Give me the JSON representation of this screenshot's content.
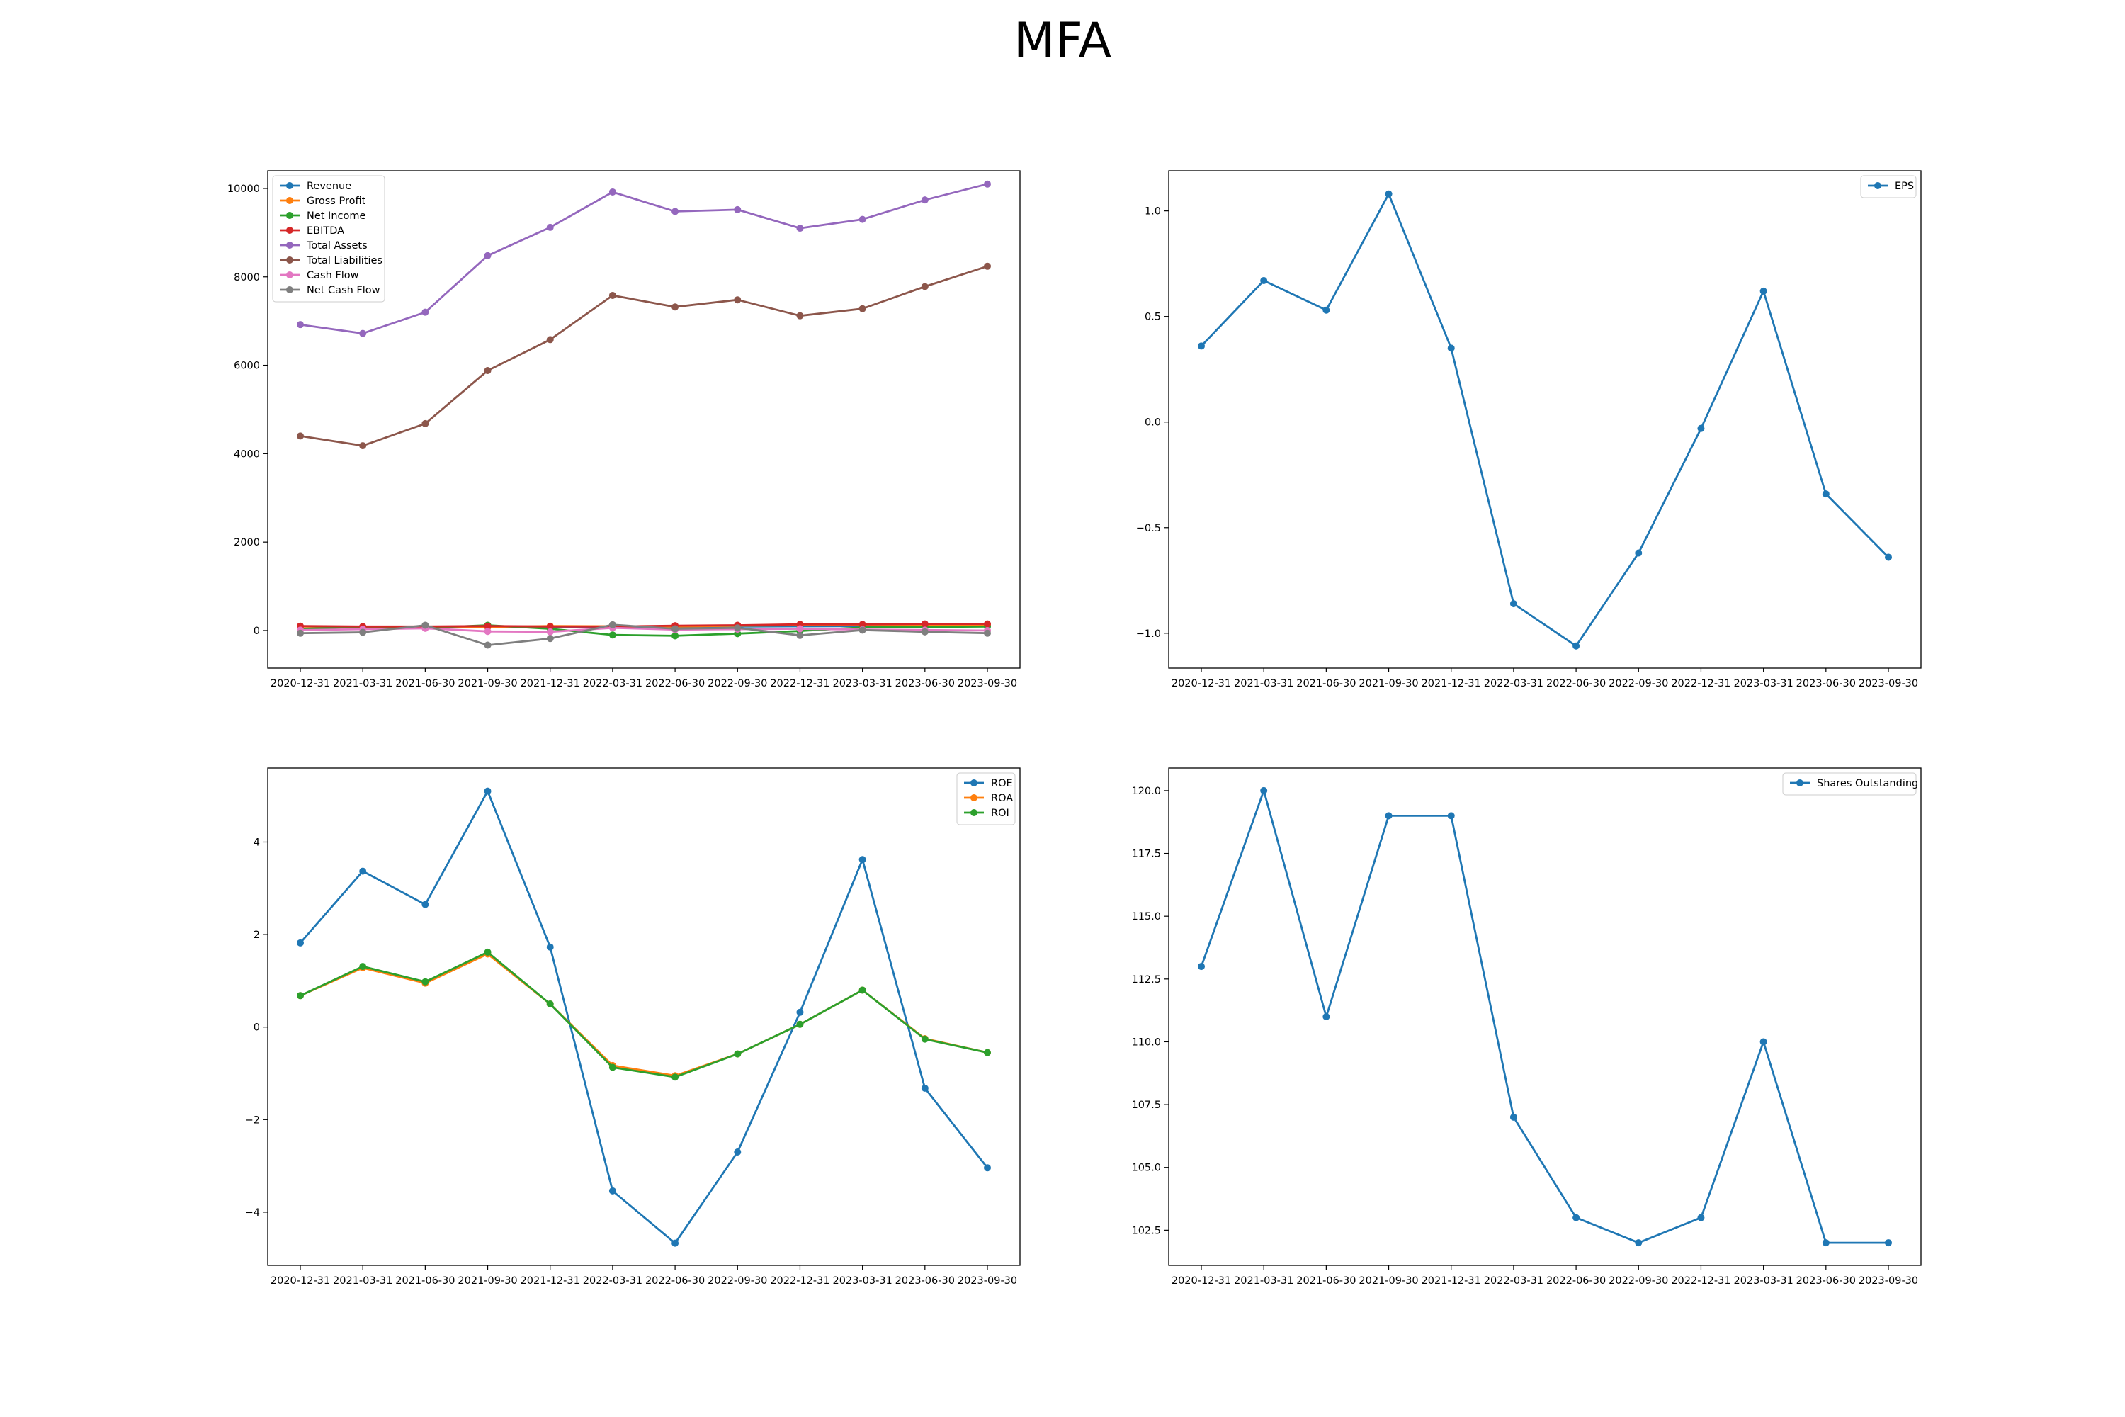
{
  "figure_title": "MFA",
  "chart_data": [
    {
      "type": "line",
      "title": "",
      "xlabel": "",
      "ylabel": "",
      "x": [
        "2020-12-31",
        "2021-03-31",
        "2021-06-30",
        "2021-09-30",
        "2021-12-31",
        "2022-03-31",
        "2022-06-30",
        "2022-09-30",
        "2022-12-31",
        "2023-03-31",
        "2023-06-30",
        "2023-09-30"
      ],
      "ylim": [
        -850,
        10400
      ],
      "yticks": [
        0,
        2000,
        4000,
        6000,
        8000,
        10000
      ],
      "legend": "upper left",
      "series": [
        {
          "name": "Revenue",
          "color": "#1f77b4",
          "values": [
            95,
            80,
            75,
            80,
            70,
            80,
            85,
            90,
            95,
            100,
            100,
            105
          ]
        },
        {
          "name": "Gross Profit",
          "color": "#ff7f0e",
          "values": [
            90,
            85,
            80,
            80,
            100,
            95,
            90,
            110,
            120,
            120,
            125,
            130
          ]
        },
        {
          "name": "Net Income",
          "color": "#2ca02c",
          "values": [
            40,
            80,
            60,
            120,
            40,
            -100,
            -120,
            -70,
            -10,
            70,
            80,
            90
          ]
        },
        {
          "name": "EBITDA",
          "color": "#d62728",
          "values": [
            100,
            90,
            90,
            100,
            90,
            90,
            110,
            120,
            140,
            140,
            150,
            150
          ]
        },
        {
          "name": "Total Assets",
          "color": "#9467bd",
          "values": [
            6920,
            6720,
            7200,
            8480,
            9120,
            9920,
            9480,
            9520,
            9100,
            9300,
            9740,
            10100
          ]
        },
        {
          "name": "Total Liabilities",
          "color": "#8c564b",
          "values": [
            4400,
            4180,
            4680,
            5880,
            6580,
            7580,
            7320,
            7480,
            7120,
            7280,
            7780,
            8240
          ]
        },
        {
          "name": "Cash Flow",
          "color": "#e377c2",
          "values": [
            10,
            30,
            50,
            -20,
            -30,
            60,
            20,
            30,
            40,
            20,
            10,
            0
          ]
        },
        {
          "name": "Net Cash Flow",
          "color": "#7f7f7f",
          "values": [
            -60,
            -40,
            120,
            -330,
            -180,
            130,
            40,
            60,
            -110,
            10,
            -30,
            -60
          ]
        }
      ]
    },
    {
      "type": "line",
      "title": "",
      "xlabel": "",
      "ylabel": "",
      "x": [
        "2020-12-31",
        "2021-03-31",
        "2021-06-30",
        "2021-09-30",
        "2021-12-31",
        "2022-03-31",
        "2022-06-30",
        "2022-09-30",
        "2022-12-31",
        "2023-03-31",
        "2023-06-30",
        "2023-09-30"
      ],
      "ylim": [
        -1.165,
        1.19
      ],
      "yticks": [
        -1.0,
        -0.5,
        0.0,
        0.5,
        1.0
      ],
      "ytick_labels": [
        "−1.0",
        "−0.5",
        "0.0",
        "0.5",
        "1.0"
      ],
      "legend": "upper right",
      "series": [
        {
          "name": "EPS",
          "color": "#1f77b4",
          "values": [
            0.36,
            0.67,
            0.53,
            1.08,
            0.35,
            -0.86,
            -1.06,
            -0.62,
            -0.03,
            0.62,
            -0.34,
            -0.64
          ]
        }
      ]
    },
    {
      "type": "line",
      "title": "",
      "xlabel": "",
      "ylabel": "",
      "x": [
        "2020-12-31",
        "2021-03-31",
        "2021-06-30",
        "2021-09-30",
        "2021-12-31",
        "2022-03-31",
        "2022-06-30",
        "2022-09-30",
        "2022-12-31",
        "2023-03-31",
        "2023-06-30",
        "2023-09-30"
      ],
      "ylim": [
        -5.15,
        5.6
      ],
      "yticks": [
        -4,
        -2,
        0,
        2,
        4
      ],
      "ytick_labels": [
        "−4",
        "−2",
        "0",
        "2",
        "4"
      ],
      "legend": "upper right",
      "series": [
        {
          "name": "ROE",
          "color": "#1f77b4",
          "values": [
            1.82,
            3.37,
            2.65,
            5.1,
            1.73,
            -3.54,
            -4.67,
            -2.7,
            0.32,
            3.62,
            -1.32,
            -3.04
          ]
        },
        {
          "name": "ROA",
          "color": "#ff7f0e",
          "values": [
            0.68,
            1.28,
            0.95,
            1.58,
            0.5,
            -0.83,
            -1.05,
            -0.58,
            0.06,
            0.8,
            -0.25,
            -0.55
          ]
        },
        {
          "name": "ROI",
          "color": "#2ca02c",
          "values": [
            0.68,
            1.31,
            0.98,
            1.62,
            0.5,
            -0.87,
            -1.08,
            -0.58,
            0.06,
            0.8,
            -0.26,
            -0.55
          ]
        }
      ]
    },
    {
      "type": "line",
      "title": "",
      "xlabel": "",
      "ylabel": "",
      "x": [
        "2020-12-31",
        "2021-03-31",
        "2021-06-30",
        "2021-09-30",
        "2021-12-31",
        "2022-03-31",
        "2022-06-30",
        "2022-09-30",
        "2022-12-31",
        "2023-03-31",
        "2023-06-30",
        "2023-09-30"
      ],
      "ylim": [
        101.1,
        120.9
      ],
      "yticks": [
        102.5,
        105.0,
        107.5,
        110.0,
        112.5,
        115.0,
        117.5,
        120.0
      ],
      "ytick_labels": [
        "102.5",
        "105.0",
        "107.5",
        "110.0",
        "112.5",
        "115.0",
        "117.5",
        "120.0"
      ],
      "legend": "upper right",
      "series": [
        {
          "name": "Shares Outstanding",
          "color": "#1f77b4",
          "values": [
            113,
            120,
            111,
            119,
            119,
            107,
            103,
            102,
            103,
            110,
            102,
            102
          ]
        }
      ]
    }
  ]
}
